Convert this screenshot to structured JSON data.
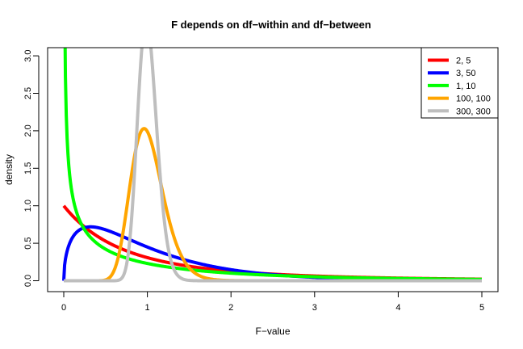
{
  "chart_data": {
    "type": "line",
    "title": "F depends on df−within and df−between",
    "xlabel": "F−value",
    "ylabel": "density",
    "xlim": [
      0,
      5
    ],
    "ylim": [
      0,
      3.1
    ],
    "x_ticks": [
      "0",
      "1",
      "2",
      "3",
      "4",
      "5"
    ],
    "y_ticks": [
      "0.0",
      "0.5",
      "1.0",
      "1.5",
      "2.0",
      "2.5",
      "3.0"
    ],
    "grid": false,
    "legend_position": "top-right",
    "series": [
      {
        "name": "2, 5",
        "df1": 2,
        "df2": 5,
        "color": "#ff0000"
      },
      {
        "name": "3, 50",
        "df1": 3,
        "df2": 50,
        "color": "#0000ff"
      },
      {
        "name": "1, 10",
        "df1": 1,
        "df2": 10,
        "color": "#00ff00"
      },
      {
        "name": "100, 100",
        "df1": 100,
        "df2": 100,
        "color": "#ffa500"
      },
      {
        "name": "300, 300",
        "df1": 300,
        "df2": 300,
        "color": "#bebebe"
      }
    ]
  }
}
